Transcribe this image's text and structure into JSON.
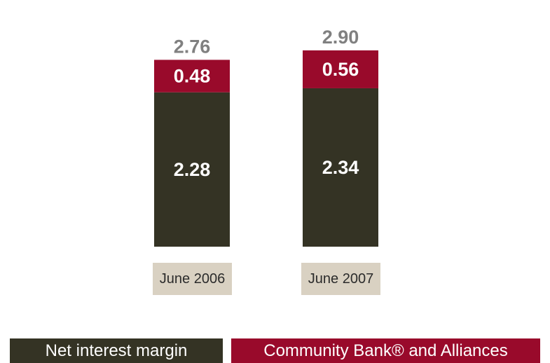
{
  "chart_data": {
    "type": "bar",
    "stacked": true,
    "categories": [
      "June 2006",
      "June 2007"
    ],
    "series": [
      {
        "name": "Net interest margin",
        "values": [
          2.28,
          2.34
        ],
        "color": "#343324"
      },
      {
        "name": "Community Bank® and Alliances",
        "values": [
          0.48,
          0.56
        ],
        "color": "#990a2b"
      }
    ],
    "totals": [
      2.76,
      2.9
    ],
    "value_labels": {
      "series": [
        [
          "2.28",
          "2.34"
        ],
        [
          "0.48",
          "0.56"
        ]
      ],
      "totals": [
        "2.76",
        "2.90"
      ]
    },
    "title": "",
    "xlabel": "",
    "ylabel": "",
    "ylim": [
      0,
      3.0
    ],
    "grid": false,
    "legend_position": "bottom",
    "category_box_color": "#d9d1c2",
    "total_label_color": "#808080"
  }
}
